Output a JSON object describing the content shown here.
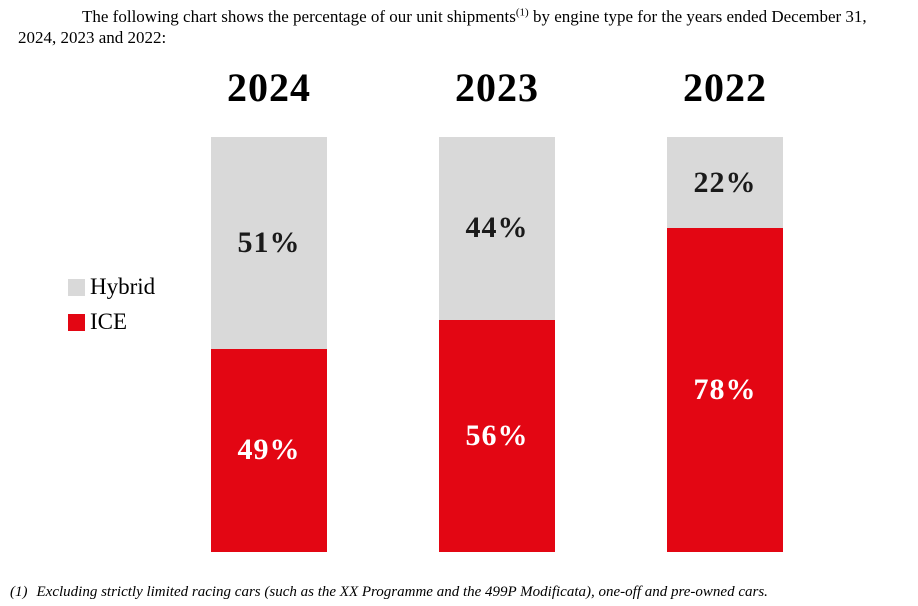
{
  "intro": {
    "before_sup": "The following chart shows the percentage of our unit shipments",
    "sup": "(1)",
    "after_sup": " by engine type for the years ended December 31,",
    "line2": "2024, 2023 and 2022:"
  },
  "footnote": {
    "marker": "(1)",
    "text": "Excluding strictly limited racing cars (such as the XX Programme and the 499P Modificata), one-off and pre-owned cars."
  },
  "chart_data": {
    "type": "bar",
    "variant": "100-percent-stacked-column",
    "title": "",
    "categories": [
      "2024",
      "2023",
      "2022"
    ],
    "series": [
      {
        "name": "Hybrid",
        "color": "#d9d9d9",
        "label_color": "#1a1a1a",
        "values": [
          51,
          44,
          22
        ]
      },
      {
        "name": "ICE",
        "color": "#e30613",
        "label_color": "#ffffff",
        "values": [
          49,
          56,
          78
        ]
      }
    ],
    "value_suffix": "%",
    "ylim": [
      0,
      100
    ],
    "grid": false,
    "axes_visible": false,
    "legend_position": "middle-left",
    "value_labels_visible": true
  }
}
